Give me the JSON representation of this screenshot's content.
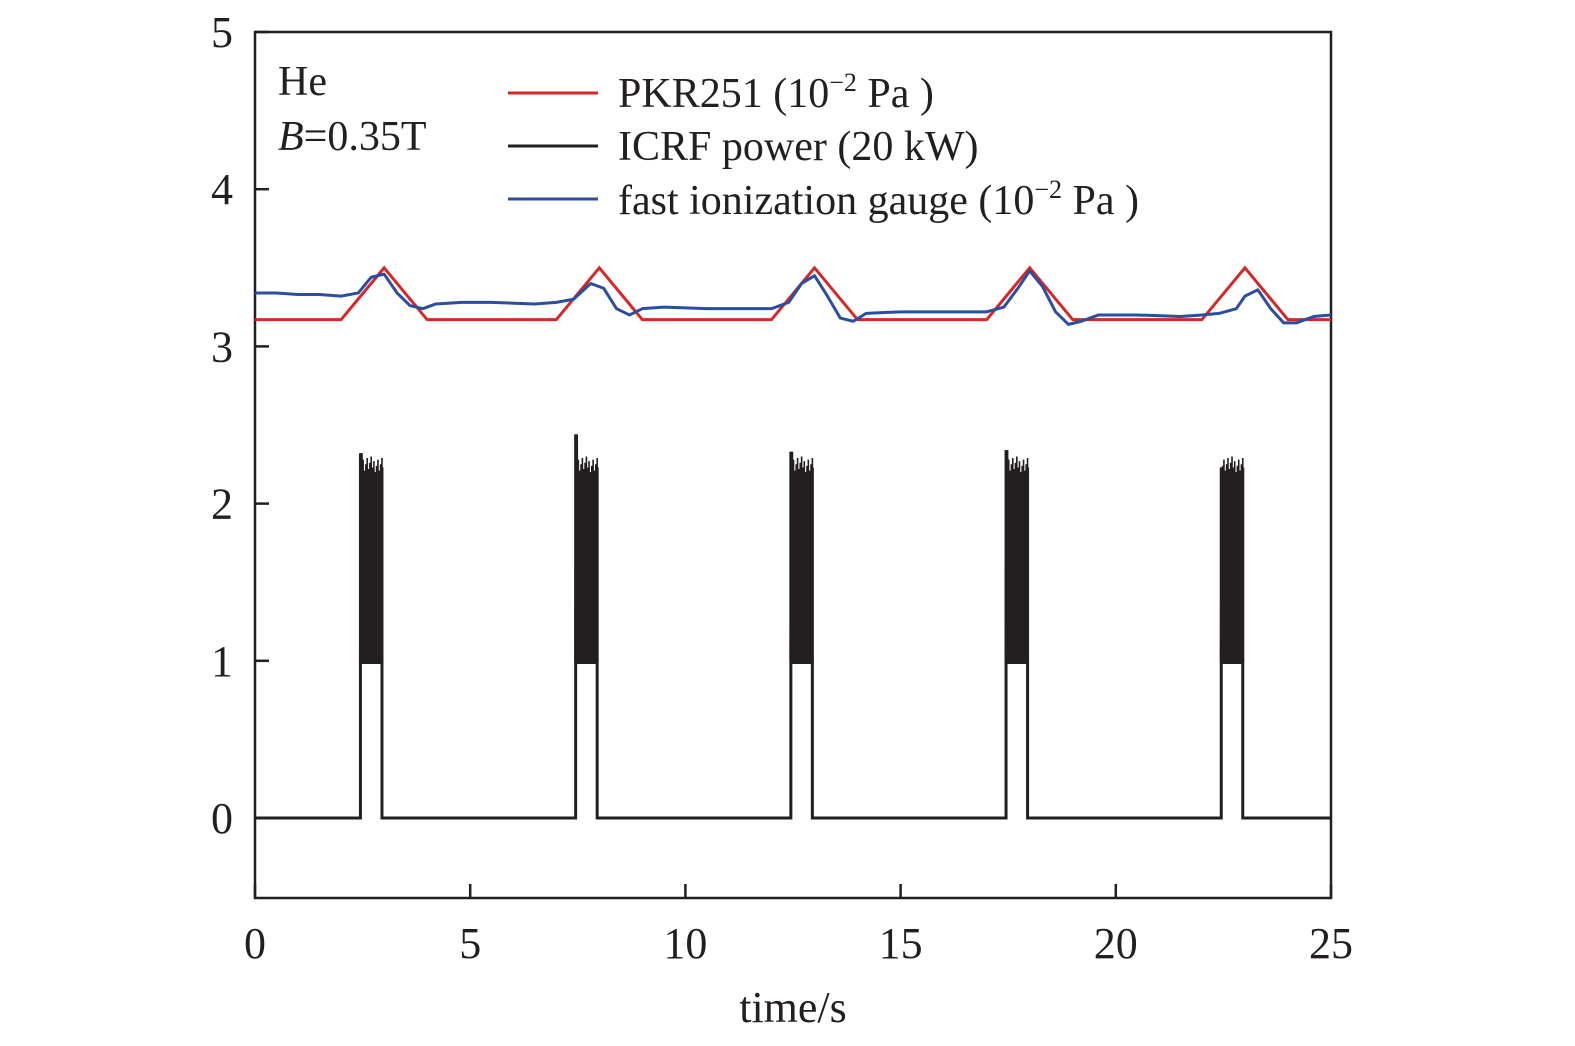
{
  "chart_data": {
    "type": "line",
    "title": "",
    "xlabel": "time/s",
    "ylabel": "",
    "xlim": [
      0,
      25
    ],
    "ylim": [
      -0.5,
      5
    ],
    "xticks": [
      0,
      5,
      10,
      15,
      20,
      25
    ],
    "yticks": [
      0,
      1,
      2,
      3,
      4,
      5
    ],
    "grid": false,
    "legend_position": "top",
    "annotations": [
      {
        "id": "gas",
        "text": "He"
      },
      {
        "id": "field",
        "text": "B=0.35T",
        "italic_prefix": "B",
        "rest": "=0.35T"
      }
    ],
    "series": [
      {
        "name": "PKR251 (10⁻² Pa )",
        "legend_base": "PKR251 (10",
        "legend_sup": "−2",
        "legend_tail": " Pa )",
        "color": "#d62728",
        "x": [
          0,
          2,
          3,
          4,
          7,
          8,
          9,
          12,
          13,
          14,
          17,
          18,
          19,
          22,
          23,
          24,
          25
        ],
        "y": [
          3.17,
          3.17,
          3.5,
          3.17,
          3.17,
          3.5,
          3.17,
          3.17,
          3.5,
          3.17,
          3.17,
          3.5,
          3.17,
          3.17,
          3.5,
          3.17,
          3.17
        ]
      },
      {
        "name": "ICRF power (20 kW)",
        "legend_base": "ICRF power (20 kW)",
        "legend_sup": "",
        "legend_tail": "",
        "color": "#231f20",
        "pulses": [
          {
            "start": 2.45,
            "end": 2.95,
            "peak": 2.32
          },
          {
            "start": 7.45,
            "end": 7.95,
            "peak": 2.44
          },
          {
            "start": 12.45,
            "end": 12.95,
            "peak": 2.33
          },
          {
            "start": 17.45,
            "end": 17.95,
            "peak": 2.34
          },
          {
            "start": 22.45,
            "end": 22.95,
            "peak": 2.23
          }
        ],
        "pulse_floor": 1.0,
        "pulse_band_top": 2.2,
        "baseline": 0
      },
      {
        "name": "fast ionization gauge (10⁻² Pa )",
        "legend_base": "fast ionization gauge (10",
        "legend_sup": "−2",
        "legend_tail": " Pa )",
        "color": "#2b4ea0",
        "x": [
          0,
          0.5,
          1.0,
          1.5,
          2.0,
          2.4,
          2.7,
          3.0,
          3.3,
          3.6,
          3.9,
          4.2,
          4.8,
          5.5,
          6.5,
          7.0,
          7.4,
          7.8,
          8.1,
          8.4,
          8.7,
          9.0,
          9.5,
          10.5,
          11.5,
          12.0,
          12.4,
          12.7,
          13.0,
          13.3,
          13.6,
          13.9,
          14.2,
          15.0,
          16.0,
          17.0,
          17.4,
          17.7,
          18.0,
          18.3,
          18.6,
          18.9,
          19.2,
          19.6,
          20.5,
          21.5,
          22.0,
          22.4,
          22.8,
          23.0,
          23.3,
          23.6,
          23.9,
          24.2,
          24.6,
          25.0
        ],
        "y": [
          3.34,
          3.34,
          3.33,
          3.33,
          3.32,
          3.34,
          3.44,
          3.46,
          3.34,
          3.26,
          3.24,
          3.27,
          3.28,
          3.28,
          3.27,
          3.28,
          3.3,
          3.4,
          3.37,
          3.24,
          3.2,
          3.24,
          3.25,
          3.24,
          3.24,
          3.24,
          3.28,
          3.4,
          3.45,
          3.32,
          3.18,
          3.16,
          3.21,
          3.22,
          3.22,
          3.22,
          3.25,
          3.36,
          3.48,
          3.38,
          3.22,
          3.14,
          3.16,
          3.2,
          3.2,
          3.19,
          3.2,
          3.21,
          3.24,
          3.32,
          3.36,
          3.24,
          3.15,
          3.15,
          3.19,
          3.2
        ]
      }
    ]
  }
}
